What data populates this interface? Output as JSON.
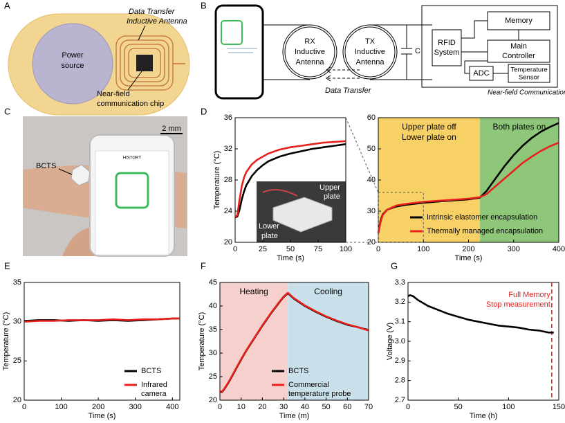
{
  "panels": {
    "labels": [
      "A",
      "B",
      "C",
      "D",
      "E",
      "F",
      "G"
    ],
    "a": {
      "antenna": [
        "Data Transfer",
        "Inductive Antenna"
      ],
      "power": [
        "Power",
        "source"
      ],
      "chip": [
        "Near-field",
        "communication chip"
      ]
    },
    "b": {
      "rx": [
        "RX",
        "Inductive",
        "Antenna"
      ],
      "tx": [
        "TX",
        "Inductive",
        "Antenna"
      ],
      "capacitor": "C",
      "rfid": [
        "RFID",
        "System"
      ],
      "memory": "Memory",
      "controller": [
        "Main",
        "Controller"
      ],
      "adc": "ADC",
      "sensor": [
        "Temperature",
        "Sensor"
      ],
      "transfer": "Data Transfer",
      "chip": "Near-field Communication Chip"
    },
    "c": {
      "scale": "2 mm",
      "device": "BCTS",
      "screen": "HISTORY"
    },
    "d": {
      "upper": [
        "Upper",
        "plate"
      ],
      "lower": [
        "Lower",
        "plate"
      ]
    }
  },
  "chart_data": [
    {
      "type": "line",
      "xlabel": "Time (s)",
      "ylabel": "Temperature (°C)",
      "xlim": [
        0,
        100
      ],
      "ylim": [
        20,
        36
      ],
      "xticks": [
        0,
        25,
        50,
        75,
        100
      ],
      "yticks": [
        20,
        24,
        28,
        32,
        36
      ],
      "x": [
        0,
        2,
        4,
        6,
        8,
        10,
        15,
        20,
        25,
        30,
        40,
        50,
        60,
        70,
        80,
        90,
        100
      ],
      "series": [
        {
          "name": "Intrinsic elastomer encapsulation",
          "color": "#000000",
          "values": [
            23.2,
            23.3,
            24.2,
            25.5,
            26.5,
            27.3,
            28.5,
            29.3,
            29.9,
            30.4,
            31.0,
            31.4,
            31.7,
            32.0,
            32.2,
            32.4,
            32.6
          ]
        },
        {
          "name": "Thermally managed encapsulation",
          "color": "#e8201c",
          "values": [
            23.2,
            23.5,
            25.5,
            27.2,
            28.3,
            29.0,
            30.0,
            30.6,
            31.0,
            31.4,
            31.9,
            32.2,
            32.4,
            32.6,
            32.8,
            32.9,
            33.0
          ]
        }
      ]
    },
    {
      "type": "line",
      "xlabel": "Time (s)",
      "xlim": [
        0,
        400
      ],
      "ylim": [
        20,
        60
      ],
      "xticks": [
        0,
        100,
        200,
        300,
        400
      ],
      "yticks": [
        20,
        30,
        40,
        50,
        60
      ],
      "regions": [
        {
          "start": 0,
          "end": 225,
          "color": "#f8d166",
          "label": [
            "Upper plate off",
            "Lower plate on"
          ]
        },
        {
          "start": 225,
          "end": 400,
          "color": "#8fc77a",
          "label": [
            "Both plates on"
          ]
        }
      ],
      "x": [
        0,
        5,
        10,
        20,
        40,
        60,
        100,
        150,
        200,
        225,
        240,
        260,
        280,
        300,
        320,
        340,
        360,
        380,
        400
      ],
      "series": [
        {
          "name": "Intrinsic elastomer encapsulation",
          "color": "#000000",
          "values": [
            23,
            27,
            29,
            30.5,
            31.5,
            32,
            32.7,
            33.3,
            33.8,
            34.3,
            36.5,
            40.5,
            44.5,
            48,
            51,
            53.5,
            55.5,
            57,
            58.3
          ]
        },
        {
          "name": "Thermally managed encapsulation",
          "color": "#e8201c",
          "values": [
            23,
            26.5,
            28.8,
            30.5,
            31.8,
            32.3,
            33,
            33.5,
            34,
            34.5,
            35.5,
            38,
            40.5,
            43,
            45.5,
            47.5,
            49.3,
            50.8,
            52
          ]
        }
      ],
      "legend": "lower right"
    },
    {
      "type": "line",
      "xlabel": "Time (s)",
      "ylabel": "Temperature (°C)",
      "xlim": [
        0,
        420
      ],
      "ylim": [
        20,
        35
      ],
      "xticks": [
        0,
        100,
        200,
        300,
        400
      ],
      "yticks": [
        20,
        25,
        30,
        35
      ],
      "x": [
        0,
        40,
        80,
        120,
        160,
        200,
        240,
        280,
        320,
        360,
        400,
        420
      ],
      "series": [
        {
          "name": "BCTS",
          "color": "#000000",
          "values": [
            30.1,
            30.2,
            30.2,
            30.1,
            30.2,
            30.1,
            30.2,
            30.1,
            30.2,
            30.3,
            30.4,
            30.4
          ]
        },
        {
          "name": "Infrared camera",
          "color": "#e8201c",
          "values": [
            30.0,
            30.1,
            30.1,
            30.2,
            30.2,
            30.2,
            30.3,
            30.2,
            30.3,
            30.3,
            30.4,
            30.4
          ]
        }
      ],
      "legend": "lower right"
    },
    {
      "type": "line",
      "xlabel": "Time (m)",
      "ylabel": "Temperature (°C)",
      "xlim": [
        0,
        70
      ],
      "ylim": [
        20,
        45
      ],
      "xticks": [
        0,
        10,
        20,
        30,
        40,
        50,
        60,
        70
      ],
      "yticks": [
        20,
        25,
        30,
        35,
        40,
        45
      ],
      "regions": [
        {
          "start": 0,
          "end": 32,
          "color": "#f5d0cc",
          "label": [
            "Heating"
          ]
        },
        {
          "start": 32,
          "end": 70,
          "color": "#c9e0ea",
          "label": [
            "Cooling"
          ]
        }
      ],
      "x": [
        0,
        1,
        2,
        4,
        6,
        8,
        10,
        12,
        14,
        16,
        18,
        20,
        22,
        24,
        26,
        28,
        30,
        32,
        35,
        40,
        45,
        50,
        55,
        60,
        65,
        70
      ],
      "series": [
        {
          "name": "BCTS",
          "color": "#000000",
          "values": [
            21.8,
            21.7,
            22.3,
            23.7,
            25.3,
            27.0,
            28.6,
            30.2,
            31.6,
            33.0,
            34.4,
            35.8,
            37.1,
            38.4,
            39.6,
            40.8,
            41.9,
            42.7,
            41.5,
            40,
            38.8,
            37.7,
            36.8,
            36,
            35.5,
            34.9
          ]
        },
        {
          "name": "Commercial temperature probe",
          "color": "#e8201c",
          "values": [
            21.9,
            21.8,
            22.4,
            23.8,
            25.4,
            27.1,
            28.7,
            30.3,
            31.7,
            33.1,
            34.5,
            35.9,
            37.2,
            38.5,
            39.7,
            40.9,
            42.0,
            42.8,
            41.6,
            40.1,
            38.9,
            37.8,
            36.9,
            36.1,
            35.5,
            34.8
          ]
        }
      ],
      "legend": "lower right"
    },
    {
      "type": "line",
      "xlabel": "Time (h)",
      "ylabel": "Voltage (V)",
      "xlim": [
        0,
        150
      ],
      "ylim": [
        2.7,
        3.3
      ],
      "xticks": [
        0,
        50,
        100,
        150
      ],
      "yticks": [
        2.7,
        2.8,
        2.9,
        {
          "value": 3,
          "label": "3.0"
        },
        3.1,
        3.2,
        3.3
      ],
      "x": [
        0,
        2,
        5,
        10,
        20,
        30,
        40,
        50,
        60,
        70,
        80,
        90,
        100,
        110,
        120,
        130,
        140,
        145
      ],
      "series": [
        {
          "name": "Voltage",
          "color": "#000000",
          "values": [
            3.23,
            3.235,
            3.23,
            3.21,
            3.18,
            3.16,
            3.14,
            3.125,
            3.11,
            3.1,
            3.09,
            3.08,
            3.075,
            3.07,
            3.06,
            3.055,
            3.045,
            3.045
          ]
        }
      ],
      "vline": {
        "x": 143,
        "color": "#e02020"
      },
      "annotations": [
        "Full Memory",
        "Stop measurement"
      ]
    }
  ]
}
